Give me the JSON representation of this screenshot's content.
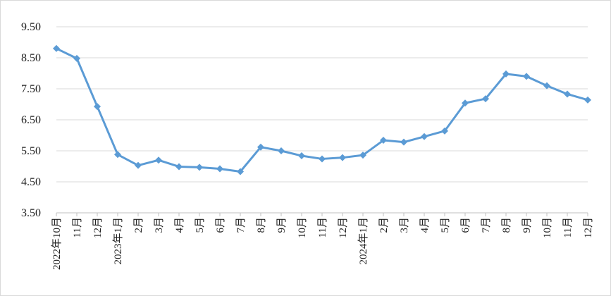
{
  "chart_data": {
    "type": "line",
    "title": "",
    "xlabel": "",
    "ylabel": "",
    "categories": [
      "2022年10月",
      "11月",
      "12月",
      "2023年1月",
      "2月",
      "3月",
      "4月",
      "5月",
      "6月",
      "7月",
      "8月",
      "9月",
      "10月",
      "11月",
      "12月",
      "2024年1月",
      "2月",
      "3月",
      "4月",
      "5月",
      "6月",
      "7月",
      "8月",
      "9月",
      "10月",
      "11月",
      "12月"
    ],
    "series": [
      {
        "values": [
          8.8,
          8.48,
          6.93,
          5.38,
          5.03,
          5.2,
          4.99,
          4.97,
          4.92,
          4.83,
          5.62,
          5.5,
          5.34,
          5.24,
          5.28,
          5.36,
          5.84,
          5.78,
          5.96,
          6.14,
          7.04,
          7.18,
          7.98,
          7.9,
          7.6,
          7.33,
          7.14
        ],
        "color": "#5b9bd5"
      }
    ],
    "ylim": [
      3.5,
      9.5
    ],
    "yticks": [
      "3.50",
      "4.50",
      "5.50",
      "6.50",
      "7.50",
      "8.50",
      "9.50"
    ],
    "grid": true,
    "legend": "none"
  }
}
